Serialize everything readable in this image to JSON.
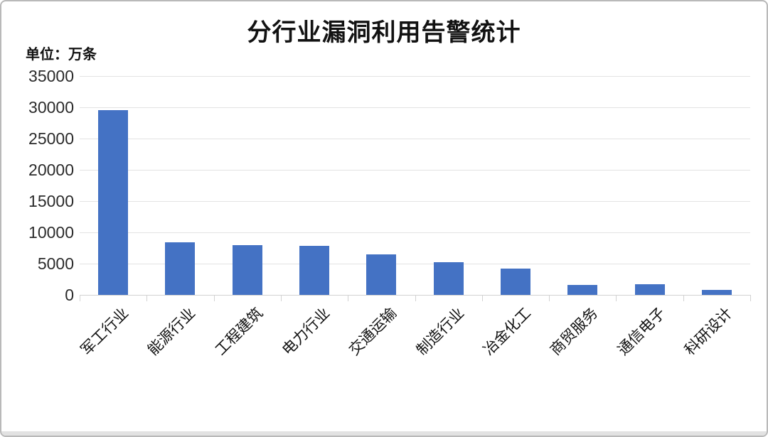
{
  "frame": {
    "background": "#ffffff",
    "border_color": "#b9b9b9",
    "bottom_strip_color": "#e2e2e2"
  },
  "chart_data": {
    "type": "bar",
    "title": "分行业漏洞利用告警统计",
    "unit_label": "单位：万条",
    "categories": [
      "军工行业",
      "能源行业",
      "工程建筑",
      "电力行业",
      "交通运输",
      "制造行业",
      "冶金化工",
      "商贸服务",
      "通信电子",
      "科研设计"
    ],
    "values": [
      29500,
      8400,
      7900,
      7800,
      6500,
      5200,
      4150,
      1600,
      1650,
      750
    ],
    "xlabel": "",
    "ylabel": "",
    "ylim": [
      0,
      35000
    ],
    "ytick_step": 5000,
    "yticks": [
      0,
      5000,
      10000,
      15000,
      20000,
      25000,
      30000,
      35000
    ],
    "grid": true,
    "gridline_color": "#e3e3e3",
    "axis_color": "#d2d2d2",
    "bar_color": "#4472c4",
    "legend": false,
    "label_rotation_deg": 45
  }
}
